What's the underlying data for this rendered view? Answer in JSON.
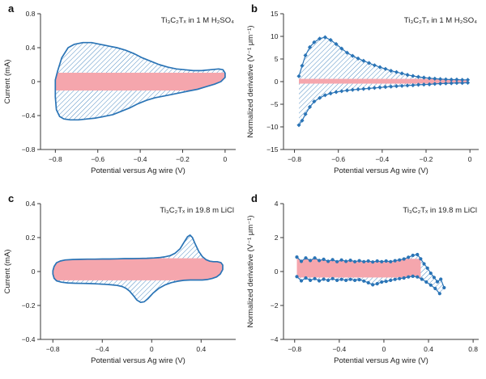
{
  "figure": {
    "background": "#ffffff",
    "colors": {
      "blue": "#2a74b6",
      "hatch": "#3d80bd",
      "pink": "#f5a6ad",
      "spine": "#3a3a3a",
      "text": "#1f1f1f"
    }
  },
  "chart_data": [
    {
      "type": "line",
      "style": "cv-loop",
      "panel": "a",
      "title": "Ti₃C₂Tₓ in 1 M H₂SO₄",
      "xlabel": "Potential versus Ag wire (V)",
      "ylabel": "Current (mA)",
      "xlim": [
        -0.87,
        0.05
      ],
      "ylim": [
        -0.8,
        0.8
      ],
      "xticks": [
        -0.8,
        -0.6,
        -0.4,
        -0.2,
        0
      ],
      "yticks": [
        -0.8,
        -0.4,
        0,
        0.4,
        0.8
      ],
      "pink_band": {
        "y0": -0.105,
        "y1": 0.105
      },
      "loop": [
        [
          -0.8,
          0.02
        ],
        [
          -0.79,
          0.12
        ],
        [
          -0.77,
          0.28
        ],
        [
          -0.74,
          0.4
        ],
        [
          -0.71,
          0.44
        ],
        [
          -0.67,
          0.46
        ],
        [
          -0.63,
          0.46
        ],
        [
          -0.59,
          0.44
        ],
        [
          -0.55,
          0.42
        ],
        [
          -0.51,
          0.4
        ],
        [
          -0.47,
          0.37
        ],
        [
          -0.43,
          0.33
        ],
        [
          -0.39,
          0.28
        ],
        [
          -0.35,
          0.24
        ],
        [
          -0.31,
          0.2
        ],
        [
          -0.27,
          0.17
        ],
        [
          -0.23,
          0.15
        ],
        [
          -0.19,
          0.14
        ],
        [
          -0.15,
          0.13
        ],
        [
          -0.11,
          0.13
        ],
        [
          -0.07,
          0.14
        ],
        [
          -0.03,
          0.15
        ],
        [
          -0.01,
          0.14
        ],
        [
          0.0,
          0.1
        ],
        [
          0.0,
          0.05
        ],
        [
          -0.02,
          0.0
        ],
        [
          -0.05,
          -0.03
        ],
        [
          -0.09,
          -0.06
        ],
        [
          -0.13,
          -0.09
        ],
        [
          -0.17,
          -0.11
        ],
        [
          -0.21,
          -0.13
        ],
        [
          -0.25,
          -0.15
        ],
        [
          -0.29,
          -0.17
        ],
        [
          -0.33,
          -0.19
        ],
        [
          -0.37,
          -0.22
        ],
        [
          -0.41,
          -0.26
        ],
        [
          -0.45,
          -0.31
        ],
        [
          -0.49,
          -0.35
        ],
        [
          -0.53,
          -0.39
        ],
        [
          -0.57,
          -0.41
        ],
        [
          -0.61,
          -0.43
        ],
        [
          -0.65,
          -0.44
        ],
        [
          -0.69,
          -0.45
        ],
        [
          -0.73,
          -0.45
        ],
        [
          -0.76,
          -0.44
        ],
        [
          -0.78,
          -0.41
        ],
        [
          -0.795,
          -0.33
        ],
        [
          -0.8,
          -0.18
        ]
      ]
    },
    {
      "type": "line",
      "style": "derivative",
      "panel": "b",
      "title": "Ti₃C₂Tₓ in 1 M H₂SO₄",
      "xlabel": "Potential versus Ag wire (V)",
      "ylabel": "Normalized derivative (V⁻¹ μm⁻¹)",
      "xlim": [
        -0.85,
        0.04
      ],
      "ylim": [
        -15,
        15
      ],
      "xticks": [
        -0.8,
        -0.6,
        -0.4,
        -0.2,
        0
      ],
      "yticks": [
        -15,
        -10,
        -5,
        0,
        5,
        10,
        15
      ],
      "marker": "diamond",
      "pink_band": {
        "y0": -0.45,
        "y1": 0.6
      },
      "upper": [
        [
          -0.78,
          1.2
        ],
        [
          -0.765,
          3.5
        ],
        [
          -0.75,
          5.8
        ],
        [
          -0.73,
          7.6
        ],
        [
          -0.71,
          8.7
        ],
        [
          -0.685,
          9.5
        ],
        [
          -0.66,
          9.8
        ],
        [
          -0.635,
          9.2
        ],
        [
          -0.61,
          8.3
        ],
        [
          -0.585,
          7.3
        ],
        [
          -0.56,
          6.4
        ],
        [
          -0.535,
          5.7
        ],
        [
          -0.51,
          5.1
        ],
        [
          -0.485,
          4.6
        ],
        [
          -0.46,
          4.1
        ],
        [
          -0.435,
          3.6
        ],
        [
          -0.41,
          3.2
        ],
        [
          -0.385,
          2.8
        ],
        [
          -0.36,
          2.4
        ],
        [
          -0.335,
          2.1
        ],
        [
          -0.31,
          1.8
        ],
        [
          -0.285,
          1.5
        ],
        [
          -0.26,
          1.25
        ],
        [
          -0.235,
          1.05
        ],
        [
          -0.21,
          0.9
        ],
        [
          -0.185,
          0.75
        ],
        [
          -0.16,
          0.65
        ],
        [
          -0.135,
          0.55
        ],
        [
          -0.11,
          0.5
        ],
        [
          -0.085,
          0.45
        ],
        [
          -0.06,
          0.45
        ],
        [
          -0.035,
          0.4
        ],
        [
          -0.01,
          0.4
        ]
      ],
      "lower": [
        [
          -0.78,
          -9.6
        ],
        [
          -0.765,
          -8.6
        ],
        [
          -0.75,
          -7.2
        ],
        [
          -0.73,
          -5.6
        ],
        [
          -0.71,
          -4.4
        ],
        [
          -0.685,
          -3.6
        ],
        [
          -0.66,
          -3.0
        ],
        [
          -0.635,
          -2.6
        ],
        [
          -0.61,
          -2.3
        ],
        [
          -0.585,
          -2.1
        ],
        [
          -0.56,
          -1.95
        ],
        [
          -0.535,
          -1.8
        ],
        [
          -0.51,
          -1.7
        ],
        [
          -0.485,
          -1.6
        ],
        [
          -0.46,
          -1.5
        ],
        [
          -0.435,
          -1.4
        ],
        [
          -0.41,
          -1.3
        ],
        [
          -0.385,
          -1.2
        ],
        [
          -0.36,
          -1.1
        ],
        [
          -0.335,
          -1.0
        ],
        [
          -0.31,
          -0.95
        ],
        [
          -0.285,
          -0.85
        ],
        [
          -0.26,
          -0.8
        ],
        [
          -0.235,
          -0.7
        ],
        [
          -0.21,
          -0.65
        ],
        [
          -0.185,
          -0.6
        ],
        [
          -0.16,
          -0.5
        ],
        [
          -0.135,
          -0.45
        ],
        [
          -0.11,
          -0.4
        ],
        [
          -0.085,
          -0.35
        ],
        [
          -0.06,
          -0.3
        ],
        [
          -0.035,
          -0.3
        ],
        [
          -0.01,
          -0.25
        ]
      ]
    },
    {
      "type": "line",
      "style": "cv-loop",
      "panel": "c",
      "title": "Ti₃C₂Tₓ in 19.8 m LiCl",
      "xlabel": "Potential versus Ag wire (V)",
      "ylabel": "Current (mA)",
      "xlim": [
        -0.9,
        0.68
      ],
      "ylim": [
        -0.4,
        0.4
      ],
      "xticks": [
        -0.8,
        -0.4,
        0,
        0.4
      ],
      "yticks": [
        -0.4,
        -0.2,
        0,
        0.2,
        0.4
      ],
      "pink_band": {
        "y0": -0.052,
        "y1": 0.078
      },
      "loop": [
        [
          -0.8,
          0.005
        ],
        [
          -0.79,
          0.03
        ],
        [
          -0.77,
          0.052
        ],
        [
          -0.74,
          0.062
        ],
        [
          -0.7,
          0.068
        ],
        [
          -0.64,
          0.071
        ],
        [
          -0.58,
          0.072
        ],
        [
          -0.52,
          0.073
        ],
        [
          -0.46,
          0.073
        ],
        [
          -0.4,
          0.074
        ],
        [
          -0.34,
          0.074
        ],
        [
          -0.28,
          0.075
        ],
        [
          -0.22,
          0.076
        ],
        [
          -0.16,
          0.076
        ],
        [
          -0.1,
          0.077
        ],
        [
          -0.04,
          0.078
        ],
        [
          0.02,
          0.08
        ],
        [
          0.07,
          0.083
        ],
        [
          0.11,
          0.087
        ],
        [
          0.15,
          0.094
        ],
        [
          0.19,
          0.108
        ],
        [
          0.23,
          0.135
        ],
        [
          0.26,
          0.17
        ],
        [
          0.29,
          0.205
        ],
        [
          0.31,
          0.215
        ],
        [
          0.33,
          0.2
        ],
        [
          0.35,
          0.165
        ],
        [
          0.38,
          0.12
        ],
        [
          0.41,
          0.088
        ],
        [
          0.44,
          0.07
        ],
        [
          0.47,
          0.061
        ],
        [
          0.5,
          0.058
        ],
        [
          0.53,
          0.058
        ],
        [
          0.56,
          0.053
        ],
        [
          0.575,
          0.038
        ],
        [
          0.575,
          0.012
        ],
        [
          0.555,
          -0.015
        ],
        [
          0.525,
          -0.032
        ],
        [
          0.49,
          -0.041
        ],
        [
          0.45,
          -0.047
        ],
        [
          0.41,
          -0.05
        ],
        [
          0.36,
          -0.05
        ],
        [
          0.31,
          -0.05
        ],
        [
          0.26,
          -0.052
        ],
        [
          0.21,
          -0.057
        ],
        [
          0.16,
          -0.065
        ],
        [
          0.11,
          -0.078
        ],
        [
          0.06,
          -0.098
        ],
        [
          0.01,
          -0.128
        ],
        [
          -0.03,
          -0.16
        ],
        [
          -0.06,
          -0.178
        ],
        [
          -0.09,
          -0.182
        ],
        [
          -0.12,
          -0.168
        ],
        [
          -0.15,
          -0.14
        ],
        [
          -0.18,
          -0.115
        ],
        [
          -0.21,
          -0.098
        ],
        [
          -0.24,
          -0.088
        ],
        [
          -0.28,
          -0.082
        ],
        [
          -0.33,
          -0.078
        ],
        [
          -0.38,
          -0.075
        ],
        [
          -0.44,
          -0.073
        ],
        [
          -0.5,
          -0.071
        ],
        [
          -0.56,
          -0.07
        ],
        [
          -0.62,
          -0.069
        ],
        [
          -0.68,
          -0.067
        ],
        [
          -0.73,
          -0.063
        ],
        [
          -0.77,
          -0.055
        ],
        [
          -0.79,
          -0.04
        ],
        [
          -0.8,
          -0.015
        ]
      ]
    },
    {
      "type": "line",
      "style": "derivative",
      "panel": "d",
      "title": "Ti₃C₂Tₓ in 19.8 m LiCl",
      "xlabel": "Potential versus Ag wire (V)",
      "ylabel": "Normalized derivative (V⁻¹ μm⁻¹)",
      "xlim": [
        -0.9,
        0.85
      ],
      "ylim": [
        -4,
        4
      ],
      "xticks": [
        -0.8,
        -0.4,
        0,
        0.4,
        0.8
      ],
      "yticks": [
        -4,
        -2,
        0,
        2,
        4
      ],
      "marker": "circle",
      "pink_band": {
        "y0": -0.35,
        "y1": 0.75,
        "x0": -0.78,
        "x1": 0.33
      },
      "upper": [
        [
          -0.78,
          0.85
        ],
        [
          -0.74,
          0.6
        ],
        [
          -0.7,
          0.8
        ],
        [
          -0.66,
          0.65
        ],
        [
          -0.62,
          0.8
        ],
        [
          -0.58,
          0.65
        ],
        [
          -0.54,
          0.72
        ],
        [
          -0.5,
          0.6
        ],
        [
          -0.46,
          0.7
        ],
        [
          -0.42,
          0.58
        ],
        [
          -0.38,
          0.68
        ],
        [
          -0.34,
          0.6
        ],
        [
          -0.3,
          0.66
        ],
        [
          -0.26,
          0.58
        ],
        [
          -0.22,
          0.64
        ],
        [
          -0.18,
          0.58
        ],
        [
          -0.14,
          0.62
        ],
        [
          -0.1,
          0.56
        ],
        [
          -0.06,
          0.62
        ],
        [
          -0.02,
          0.58
        ],
        [
          0.02,
          0.62
        ],
        [
          0.06,
          0.58
        ],
        [
          0.1,
          0.64
        ],
        [
          0.14,
          0.68
        ],
        [
          0.18,
          0.74
        ],
        [
          0.22,
          0.84
        ],
        [
          0.26,
          0.95
        ],
        [
          0.3,
          1.0
        ],
        [
          0.33,
          0.75
        ],
        [
          0.36,
          0.45
        ],
        [
          0.39,
          0.2
        ],
        [
          0.42,
          -0.1
        ],
        [
          0.45,
          -0.35
        ],
        [
          0.48,
          -0.6
        ],
        [
          0.51,
          -0.45
        ],
        [
          0.54,
          -0.95
        ]
      ],
      "lower": [
        [
          -0.78,
          -0.3
        ],
        [
          -0.74,
          -0.55
        ],
        [
          -0.7,
          -0.38
        ],
        [
          -0.66,
          -0.52
        ],
        [
          -0.62,
          -0.42
        ],
        [
          -0.58,
          -0.55
        ],
        [
          -0.54,
          -0.45
        ],
        [
          -0.5,
          -0.52
        ],
        [
          -0.46,
          -0.42
        ],
        [
          -0.42,
          -0.52
        ],
        [
          -0.38,
          -0.46
        ],
        [
          -0.34,
          -0.52
        ],
        [
          -0.3,
          -0.46
        ],
        [
          -0.26,
          -0.52
        ],
        [
          -0.22,
          -0.48
        ],
        [
          -0.18,
          -0.56
        ],
        [
          -0.14,
          -0.66
        ],
        [
          -0.1,
          -0.78
        ],
        [
          -0.06,
          -0.72
        ],
        [
          -0.02,
          -0.62
        ],
        [
          0.02,
          -0.58
        ],
        [
          0.06,
          -0.52
        ],
        [
          0.1,
          -0.46
        ],
        [
          0.14,
          -0.42
        ],
        [
          0.18,
          -0.38
        ],
        [
          0.22,
          -0.32
        ],
        [
          0.26,
          -0.28
        ],
        [
          0.3,
          -0.32
        ],
        [
          0.34,
          -0.45
        ],
        [
          0.38,
          -0.62
        ],
        [
          0.42,
          -0.8
        ],
        [
          0.46,
          -1.0
        ],
        [
          0.5,
          -1.3
        ]
      ]
    }
  ]
}
